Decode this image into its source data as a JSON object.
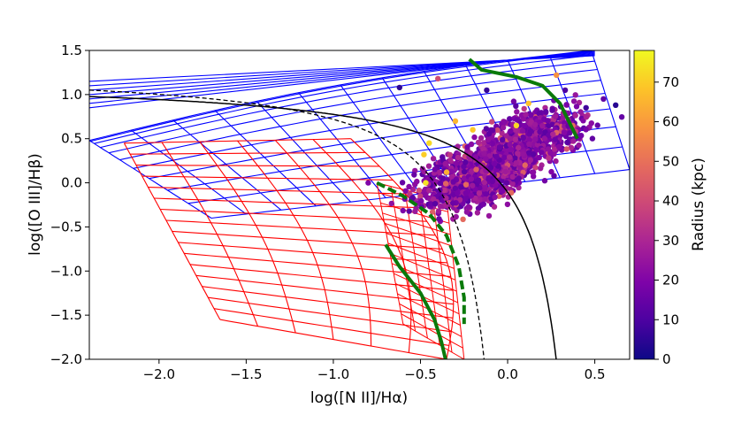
{
  "chart_data": {
    "type": "scatter",
    "title": "",
    "xlabel": "log([N II]/Hα)",
    "ylabel": "log([O III]/Hβ)",
    "xlim": [
      -2.4,
      0.7
    ],
    "ylim": [
      -2.0,
      1.5
    ],
    "xticks": [
      -2.0,
      -1.5,
      -1.0,
      -0.5,
      0.0,
      0.5
    ],
    "xtick_labels": [
      "−2.0",
      "−1.5",
      "−1.0",
      "−0.5",
      "0.0",
      "0.5"
    ],
    "yticks": [
      1.5,
      1.0,
      0.5,
      0.0,
      -0.5,
      -1.0,
      -1.5,
      -2.0
    ],
    "ytick_labels": [
      "1.5",
      "1.0",
      "0.5",
      "0.0",
      "−0.5",
      "−1.0",
      "−1.5",
      "−2.0"
    ],
    "grid": false,
    "colorbar": {
      "label": "Radius (kpc)",
      "range": [
        0,
        78
      ],
      "ticks": [
        0,
        10,
        20,
        30,
        40,
        50,
        60,
        70
      ],
      "tick_labels": [
        "0",
        "10",
        "20",
        "30",
        "40",
        "50",
        "60",
        "70"
      ],
      "colormap": "plasma"
    },
    "scatter_cloud": {
      "description_of_distribution": "dense band of spaxels",
      "center": [
        -0.05,
        0.25
      ],
      "along_slope": 1.35,
      "extent_along": [
        -0.8,
        0.75
      ],
      "width": 0.12,
      "n_points": 1500
    },
    "outlier_points": [
      {
        "x": -0.45,
        "y": 0.45,
        "r": 72
      },
      {
        "x": -0.48,
        "y": 0.32,
        "r": 70
      },
      {
        "x": -0.47,
        "y": 0.0,
        "r": 74
      },
      {
        "x": -0.3,
        "y": 0.7,
        "r": 66
      },
      {
        "x": -0.2,
        "y": 0.6,
        "r": 69
      },
      {
        "x": -0.35,
        "y": 0.12,
        "r": 64
      },
      {
        "x": 0.33,
        "y": 1.05,
        "r": 10
      },
      {
        "x": 0.45,
        "y": 0.85,
        "r": 8
      },
      {
        "x": 0.55,
        "y": 0.95,
        "r": 14
      },
      {
        "x": -0.62,
        "y": 1.08,
        "r": 5
      },
      {
        "x": -0.4,
        "y": 1.18,
        "r": 40
      },
      {
        "x": -0.12,
        "y": 1.05,
        "r": 6
      },
      {
        "x": 0.28,
        "y": 1.22,
        "r": 58
      },
      {
        "x": 0.62,
        "y": 0.88,
        "r": 4
      },
      {
        "x": 0.12,
        "y": 0.9,
        "r": 68
      },
      {
        "x": 0.26,
        "y": 0.55,
        "r": 30
      },
      {
        "x": -0.8,
        "y": 0.0,
        "r": 20
      },
      {
        "x": 0.1,
        "y": 0.2,
        "r": 48
      },
      {
        "x": 0.05,
        "y": 0.65,
        "r": 72
      }
    ],
    "lines": {
      "solid_black": "demarcation curve (solid)",
      "dashed_black": "demarcation curve (dashed)"
    },
    "colors": {
      "blue_grid": "#0000ff",
      "red_grid": "#ff0000",
      "green_tracks": "#0a7a0a",
      "black_lines": "#000000"
    }
  }
}
